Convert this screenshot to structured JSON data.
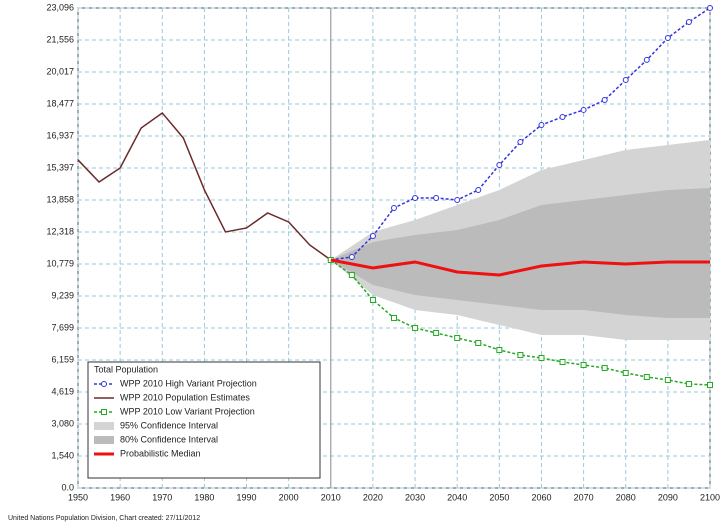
{
  "chart_data": {
    "type": "line",
    "xlim": [
      1950,
      2100
    ],
    "xticks": [
      1950,
      1960,
      1970,
      1980,
      1990,
      2000,
      2010,
      2020,
      2030,
      2040,
      2050,
      2060,
      2070,
      2080,
      2090,
      2100
    ],
    "ylim": [
      0,
      23096
    ],
    "yticks": [
      {
        "value": 0,
        "label": "0.0"
      },
      {
        "value": 1540,
        "label": "1,540"
      },
      {
        "value": 3080,
        "label": "3,080"
      },
      {
        "value": 4619,
        "label": "4,619"
      },
      {
        "value": 6159,
        "label": "6,159"
      },
      {
        "value": 7699,
        "label": "7,699"
      },
      {
        "value": 9239,
        "label": "9,239"
      },
      {
        "value": 10779,
        "label": "10,779"
      },
      {
        "value": 12318,
        "label": "12,318"
      },
      {
        "value": 13858,
        "label": "13,858"
      },
      {
        "value": 15397,
        "label": "15,397"
      },
      {
        "value": 16937,
        "label": "16,937"
      },
      {
        "value": 18477,
        "label": "18,477"
      },
      {
        "value": 20017,
        "label": "20,017"
      },
      {
        "value": 21556,
        "label": "21,556"
      },
      {
        "value": 23096,
        "label": "23,096"
      }
    ],
    "grid": true,
    "legend_title": "Total Population",
    "legend": "lower left",
    "footer": "United Nations Population Division, Chart created: 27/11/2012",
    "series": [
      {
        "name": "WPP 2010 High Variant Projection",
        "color": "#3333dd",
        "marker": "circle",
        "x": [
          2010,
          2015,
          2020,
          2025,
          2030,
          2035,
          2040,
          2045,
          2050,
          2055,
          2060,
          2065,
          2070,
          2075,
          2080,
          2085,
          2090,
          2095,
          2100
        ],
        "values": [
          10972,
          11117,
          12127,
          13474,
          13956,
          13956,
          13859,
          14341,
          15544,
          16651,
          17469,
          17854,
          18191,
          18672,
          19634,
          20597,
          21655,
          22425,
          23099
        ]
      },
      {
        "name": "WPP 2010 Population Estimates",
        "color": "#6b2a2a",
        "marker": "none",
        "x": [
          1950,
          1955,
          1960,
          1965,
          1970,
          1975,
          1980,
          1985,
          1990,
          1995,
          2000,
          2005,
          2010
        ],
        "values": [
          15785,
          14725,
          15400,
          17324,
          18046,
          16843,
          14341,
          12320,
          12512,
          13234,
          12801,
          11694,
          10972
        ]
      },
      {
        "name": "WPP 2010 Low Variant Projection",
        "color": "#22aa22",
        "marker": "square",
        "x": [
          2010,
          2015,
          2020,
          2025,
          2030,
          2035,
          2040,
          2045,
          2050,
          2055,
          2060,
          2065,
          2070,
          2075,
          2080,
          2085,
          2090,
          2095,
          2100
        ],
        "values": [
          10972,
          10250,
          9047,
          8181,
          7700,
          7459,
          7218,
          6978,
          6641,
          6400,
          6256,
          6063,
          5919,
          5775,
          5534,
          5342,
          5197,
          5005,
          4957
        ]
      },
      {
        "name": "95% Confidence Interval",
        "color": "#d4d4d4",
        "band": true,
        "x": [
          2010,
          2020,
          2030,
          2040,
          2050,
          2060,
          2070,
          2080,
          2090,
          2100
        ],
        "upper": [
          10972,
          12319,
          12896,
          13618,
          14340,
          15302,
          15783,
          16264,
          16505,
          16746
        ],
        "lower": [
          10972,
          9287,
          8565,
          8325,
          7844,
          7362,
          7362,
          7122,
          7122,
          7122
        ]
      },
      {
        "name": "80% Confidence Interval",
        "color": "#bbbbbb",
        "band": true,
        "x": [
          2010,
          2020,
          2030,
          2040,
          2050,
          2060,
          2070,
          2080,
          2090,
          2100
        ],
        "upper": [
          10972,
          11838,
          12174,
          12415,
          12896,
          13618,
          13859,
          14099,
          14340,
          14436
        ],
        "lower": [
          10972,
          9768,
          9287,
          9047,
          8806,
          8565,
          8565,
          8325,
          8180,
          8180
        ]
      },
      {
        "name": "Probabilistic Median",
        "color": "#ee1111",
        "marker": "none",
        "width": 3,
        "x": [
          2010,
          2020,
          2030,
          2040,
          2050,
          2060,
          2070,
          2080,
          2090,
          2100
        ],
        "values": [
          10972,
          10587,
          10876,
          10395,
          10250,
          10683,
          10876,
          10779,
          10876,
          10876
        ]
      }
    ]
  }
}
